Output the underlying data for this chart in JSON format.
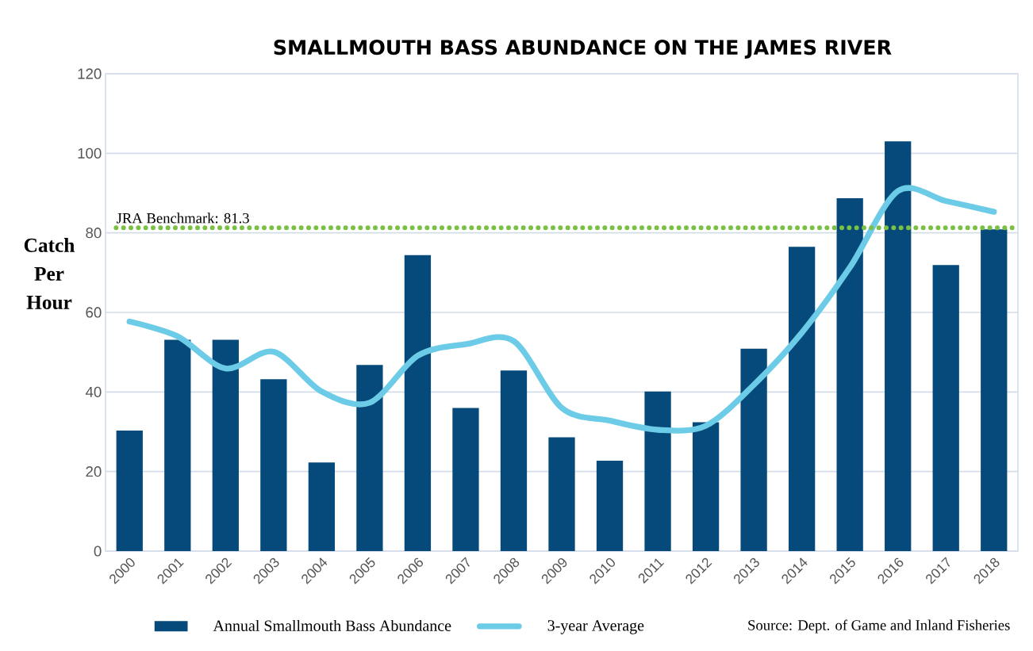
{
  "chart_data": {
    "type": "bar",
    "title": "SMALLMOUTH BASS ABUNDANCE ON THE JAMES RIVER",
    "ylabel": "Catch Per Hour",
    "categories": [
      "2000",
      "2001",
      "2002",
      "2003",
      "2004",
      "2005",
      "2006",
      "2007",
      "2008",
      "2009",
      "2010",
      "2011",
      "2012",
      "2013",
      "2014",
      "2015",
      "2016",
      "2017",
      "2018"
    ],
    "series": [
      {
        "name": "Annual Smallmouth Bass Abundance",
        "color": "#054a7a",
        "values": [
          30.3,
          53.1,
          53.1,
          43.2,
          22.3,
          46.8,
          74.4,
          36.0,
          45.4,
          28.6,
          22.7,
          40.1,
          32.4,
          50.9,
          76.5,
          88.7,
          103.0,
          71.9,
          80.9
        ]
      },
      {
        "name": "3-year Average",
        "type": "line",
        "color": "#6ccbe6",
        "values": [
          57.7,
          54.0,
          45.9,
          50.1,
          40.1,
          37.3,
          49.1,
          52.0,
          52.8,
          36.0,
          32.8,
          30.5,
          31.5,
          41.8,
          54.9,
          71.3,
          90.5,
          88.0,
          85.3
        ]
      }
    ],
    "ylim": [
      0,
      120
    ],
    "yticks": [
      0,
      20,
      40,
      60,
      80,
      100,
      120
    ],
    "grid": "y",
    "legend": "bottom",
    "ref_lines": [
      {
        "axis": "y",
        "value": 81.3,
        "label": "JRA Benchmark: 81.3",
        "color": "#7ac143",
        "line_style": "dotted"
      }
    ],
    "annotations": [
      "Source: Dept. of Game and Inland Fisheries"
    ]
  }
}
